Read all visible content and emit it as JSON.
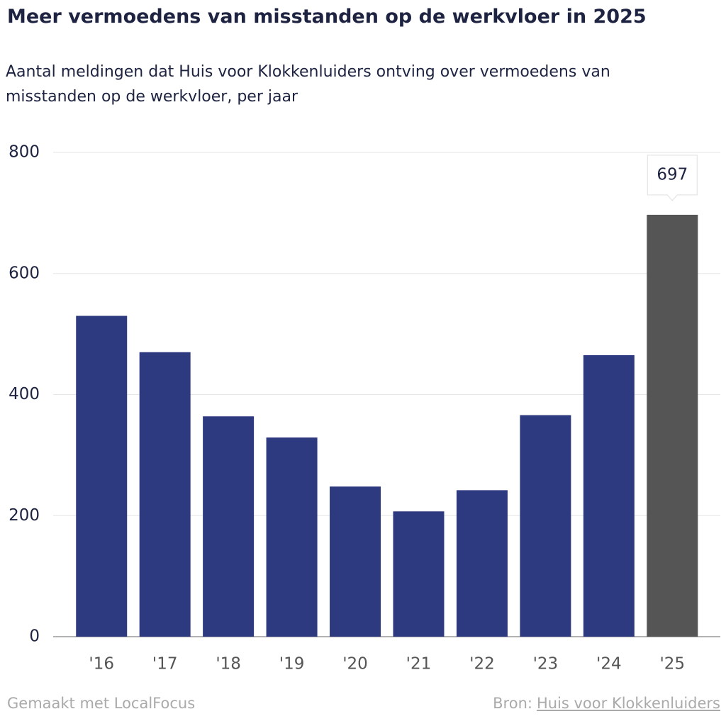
{
  "chart_data": {
    "type": "bar",
    "title": "Meer vermoedens van misstanden op de werkvloer in 2025",
    "subtitle": "Aantal meldingen dat Huis voor Klokkenluiders ontving over vermoedens van misstanden op de werkvloer, per jaar",
    "categories": [
      "'16",
      "'17",
      "'18",
      "'19",
      "'20",
      "'21",
      "'22",
      "'23",
      "'24",
      "'25"
    ],
    "values": [
      530,
      470,
      364,
      329,
      248,
      207,
      242,
      366,
      465,
      697
    ],
    "colors": [
      "#2e3a80",
      "#2e3a80",
      "#2e3a80",
      "#2e3a80",
      "#2e3a80",
      "#2e3a80",
      "#2e3a80",
      "#2e3a80",
      "#2e3a80",
      "#555555"
    ],
    "ylim": [
      0,
      800
    ],
    "yticks": [
      0,
      200,
      400,
      600,
      800
    ],
    "grid": true,
    "footer": {
      "made_with": "Gemaakt met LocalFocus",
      "source_label": "Bron:",
      "source": "Huis voor Klokkenluiders"
    }
  }
}
